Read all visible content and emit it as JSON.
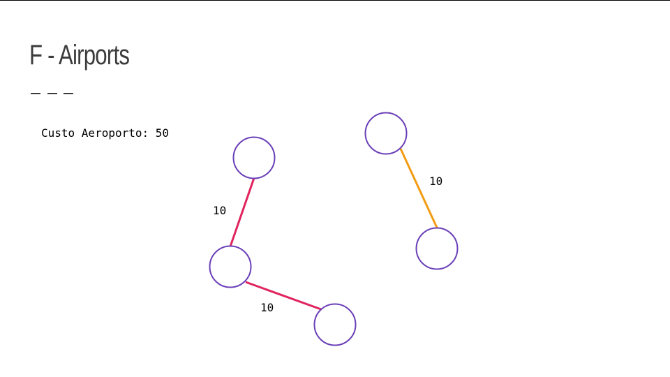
{
  "slide": {
    "title": "F - Airports",
    "airport_cost_text": "Custo Aeroporto: 50"
  },
  "graph": {
    "node_stroke_color": "#6a3fb8",
    "nodes": [
      "n1",
      "n2",
      "n3",
      "n4",
      "n5"
    ],
    "edges": [
      {
        "from": "n1",
        "to": "n2",
        "weight": "10",
        "color": "#e0245e"
      },
      {
        "from": "n2",
        "to": "n3",
        "weight": "10",
        "color": "#e0245e"
      },
      {
        "from": "n4",
        "to": "n5",
        "weight": "10",
        "color": "#f39c12"
      }
    ]
  }
}
